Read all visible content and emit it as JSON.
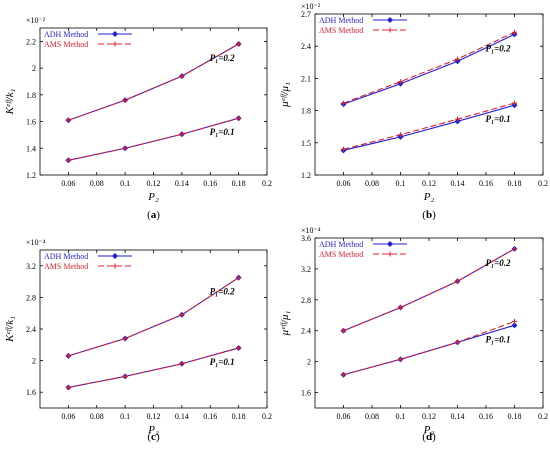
{
  "figure": {
    "colors": {
      "adh": "#1f1fd6",
      "ams": "#e0202a",
      "axis": "#000000"
    },
    "chart_data": [
      {
        "type": "line",
        "panel_label": "(a)",
        "bold_part": "a",
        "xlabel": "P₂",
        "ylabel": "Kᵉᶠᶠ/k₁",
        "exponent": "×10⁻²",
        "xlim": [
          0.04,
          0.2
        ],
        "ylim": [
          1.2,
          2.3
        ],
        "xticks": [
          "0.06",
          "0.08",
          "0.1",
          "0.12",
          "0.14",
          "0.16",
          "0.18",
          "0.2"
        ],
        "yticks": [
          "1.2",
          "1.4",
          "1.6",
          "1.8",
          "2",
          "2.2"
        ],
        "x": [
          0.06,
          0.1,
          0.14,
          0.18
        ],
        "legend": [
          "ADH Method",
          "AMS Method"
        ],
        "annotations": [
          "P₁=0.2",
          "P₁=0.1"
        ],
        "series": [
          {
            "method": "ADH",
            "values_top": [
              1.61,
              1.76,
              1.94,
              2.18
            ],
            "values_bottom": [
              1.31,
              1.4,
              1.505,
              1.625
            ]
          },
          {
            "method": "AMS",
            "values_top": [
              1.61,
              1.76,
              1.94,
              2.18
            ],
            "values_bottom": [
              1.31,
              1.4,
              1.505,
              1.625
            ]
          }
        ]
      },
      {
        "type": "line",
        "panel_label": "(b)",
        "bold_part": "b",
        "xlabel": "P₂",
        "ylabel": "μᵉᶠᶠ/μ₁",
        "exponent": "×10⁻²",
        "xlim": [
          0.04,
          0.2
        ],
        "ylim": [
          1.2,
          2.7
        ],
        "xticks": [
          "0.06",
          "0.08",
          "0.1",
          "0.12",
          "0.14",
          "0.16",
          "0.18",
          "0.2"
        ],
        "yticks": [
          "1.2",
          "1.5",
          "1.8",
          "2.1",
          "2.4",
          "2.7"
        ],
        "x": [
          0.06,
          0.1,
          0.14,
          0.18
        ],
        "legend": [
          "ADH Method",
          "AMS Method"
        ],
        "annotations": [
          "P₁=0.2",
          "P₁=0.1"
        ],
        "series": [
          {
            "method": "ADH",
            "values_top": [
              1.86,
              2.05,
              2.26,
              2.51
            ],
            "values_bottom": [
              1.43,
              1.555,
              1.7,
              1.85
            ]
          },
          {
            "method": "AMS",
            "values_top": [
              1.87,
              2.07,
              2.28,
              2.53
            ],
            "values_bottom": [
              1.44,
              1.575,
              1.72,
              1.87
            ]
          }
        ]
      },
      {
        "type": "line",
        "panel_label": "(c)",
        "bold_part": "c",
        "xlabel": "P₂",
        "ylabel": "Kᵉᶠᶠ/k₁",
        "exponent": "×10⁻⁴",
        "xlim": [
          0.04,
          0.2
        ],
        "ylim": [
          1.4,
          3.4
        ],
        "xticks": [
          "0.06",
          "0.08",
          "0.1",
          "0.12",
          "0.14",
          "0.16",
          "0.18",
          "0.2"
        ],
        "yticks": [
          "1.6",
          "2",
          "2.4",
          "2.8",
          "3.2"
        ],
        "x": [
          0.06,
          0.1,
          0.14,
          0.18
        ],
        "legend": [
          "ADH Method",
          "AMS Method"
        ],
        "annotations": [
          "P₁=0.2",
          "P₁=0.1"
        ],
        "series": [
          {
            "method": "ADH",
            "values_top": [
              2.06,
              2.28,
              2.58,
              3.05
            ],
            "values_bottom": [
              1.66,
              1.8,
              1.96,
              2.16
            ]
          },
          {
            "method": "AMS",
            "values_top": [
              2.06,
              2.28,
              2.58,
              3.05
            ],
            "values_bottom": [
              1.66,
              1.8,
              1.96,
              2.16
            ]
          }
        ]
      },
      {
        "type": "line",
        "panel_label": "(d)",
        "bold_part": "d",
        "xlabel": "P₂",
        "ylabel": "μᵉᶠᶠ/μ₁",
        "exponent": "×10⁻⁴",
        "xlim": [
          0.04,
          0.2
        ],
        "ylim": [
          1.4,
          3.6
        ],
        "xticks": [
          "0.06",
          "0.08",
          "0.1",
          "0.12",
          "0.14",
          "0.16",
          "0.18",
          "0.2"
        ],
        "yticks": [
          "1.6",
          "2",
          "2.4",
          "2.8",
          "3.2",
          "3.6"
        ],
        "x": [
          0.06,
          0.1,
          0.14,
          0.18
        ],
        "legend": [
          "ADH Method",
          "AMS Method"
        ],
        "annotations": [
          "P₁=0.2",
          "P₁=0.1"
        ],
        "series": [
          {
            "method": "ADH",
            "values_top": [
              2.4,
              2.7,
              3.04,
              3.46
            ],
            "values_bottom": [
              1.83,
              2.03,
              2.25,
              2.47
            ]
          },
          {
            "method": "AMS",
            "values_top": [
              2.4,
              2.7,
              3.04,
              3.46
            ],
            "values_bottom": [
              1.83,
              2.03,
              2.25,
              2.52
            ]
          }
        ]
      }
    ]
  }
}
